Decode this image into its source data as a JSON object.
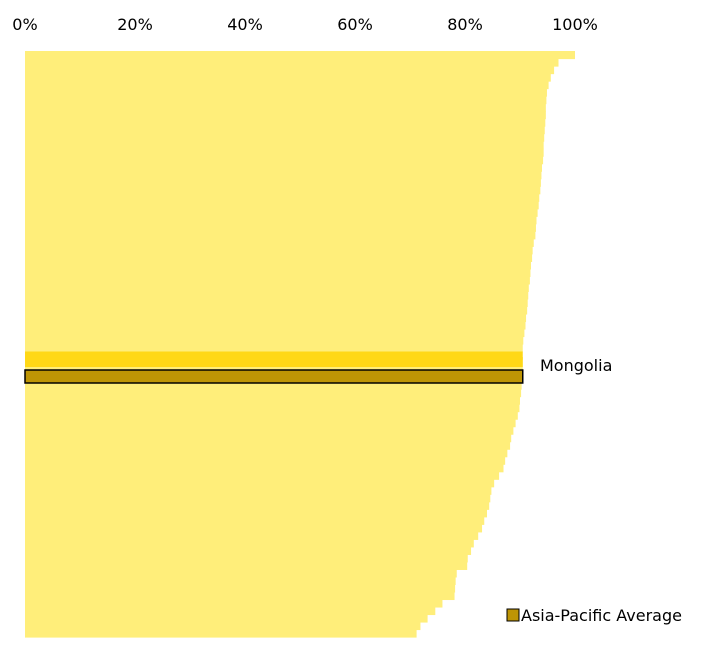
{
  "chart_data": {
    "type": "bar",
    "orientation": "horizontal",
    "x_axis": {
      "position": "top",
      "range": [
        0,
        100
      ],
      "tick_labels": [
        "0%",
        "20%",
        "40%",
        "60%",
        "80%",
        "100%"
      ]
    },
    "grid": false,
    "highlight": {
      "label": "Mongolia",
      "value": 90.5
    },
    "average": {
      "name": "Asia-Pacific Average",
      "value": 90.5
    },
    "legend": {
      "position": "bottom-right",
      "entries": [
        "Asia-Pacific Average"
      ]
    },
    "values": [
      100,
      97,
      96.2,
      95.6,
      95.2,
      94.9,
      94.8,
      94.7,
      94.7,
      94.6,
      94.5,
      94.4,
      94.3,
      94.3,
      94.2,
      94,
      93.9,
      93.8,
      93.7,
      93.5,
      93.4,
      93.2,
      93,
      92.9,
      92.8,
      92.5,
      92.3,
      92.2,
      92,
      91.9,
      91.8,
      91.6,
      91.5,
      91.4,
      91.3,
      91.1,
      91,
      90.8,
      90.6,
      90.5,
      90.5,
      90.5,
      90.5,
      90.4,
      90.3,
      90.2,
      90,
      89.9,
      89.6,
      89.2,
      88.8,
      88.4,
      88.2,
      87.7,
      87.3,
      87,
      86.2,
      85.3,
      84.8,
      84.6,
      84.4,
      84,
      83.5,
      83.1,
      82.4,
      81.6,
      81.1,
      80.5,
      80.4,
      78.5,
      78.3,
      78.2,
      78.1,
      75.9,
      74.6,
      73.2,
      71.9,
      71.2
    ],
    "highlight_index": 40,
    "colors": {
      "bar": "#FFEE7A",
      "highlight": "#FFD816",
      "average": "#BE9505",
      "average_border": "#000000",
      "text": "#000000"
    }
  }
}
